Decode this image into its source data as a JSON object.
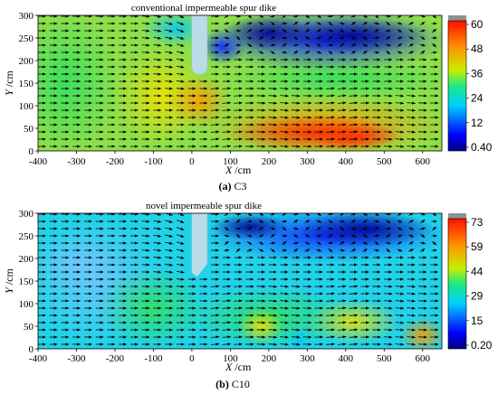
{
  "chart_data": [
    {
      "type": "heatmap",
      "title": "conventional impermeable spur dike",
      "caption_label": "(a)",
      "caption_text": " C3",
      "xlabel": "X",
      "xunit": "/cm",
      "ylabel": "Y",
      "yunit": "/cm",
      "xlim": [
        -400,
        650
      ],
      "ylim": [
        0,
        300
      ],
      "x_ticks": [
        -400,
        -300,
        -200,
        -100,
        0,
        100,
        200,
        300,
        400,
        500,
        600
      ],
      "y_ticks": [
        0,
        50,
        100,
        150,
        200,
        250,
        300
      ],
      "colorbar": {
        "min": 0.4,
        "max": 60,
        "labels": [
          "60",
          "48",
          "36",
          "24",
          "12",
          "0.40"
        ]
      },
      "dike": {
        "x": [
          0,
          40
        ],
        "y_tip": 170,
        "shape": "rounded"
      },
      "vectors": "velocity field arrows"
    },
    {
      "type": "heatmap",
      "title": "novel impermeable spur dike",
      "caption_label": "(b)",
      "caption_text": " C10",
      "xlabel": "X",
      "xunit": "/cm",
      "ylabel": "Y",
      "yunit": "/cm",
      "xlim": [
        -400,
        650
      ],
      "ylim": [
        0,
        300
      ],
      "x_ticks": [
        -400,
        -300,
        -200,
        -100,
        0,
        100,
        200,
        300,
        400,
        500,
        600
      ],
      "y_ticks": [
        0,
        50,
        100,
        150,
        200,
        250,
        300
      ],
      "colorbar": {
        "min": 0.2,
        "max": 73,
        "labels": [
          "73",
          "59",
          "44",
          "29",
          "15",
          "0.20"
        ]
      },
      "dike": {
        "x": [
          0,
          40
        ],
        "y_tip": 160,
        "shape": "angled"
      },
      "vectors": "velocity field arrows"
    }
  ]
}
